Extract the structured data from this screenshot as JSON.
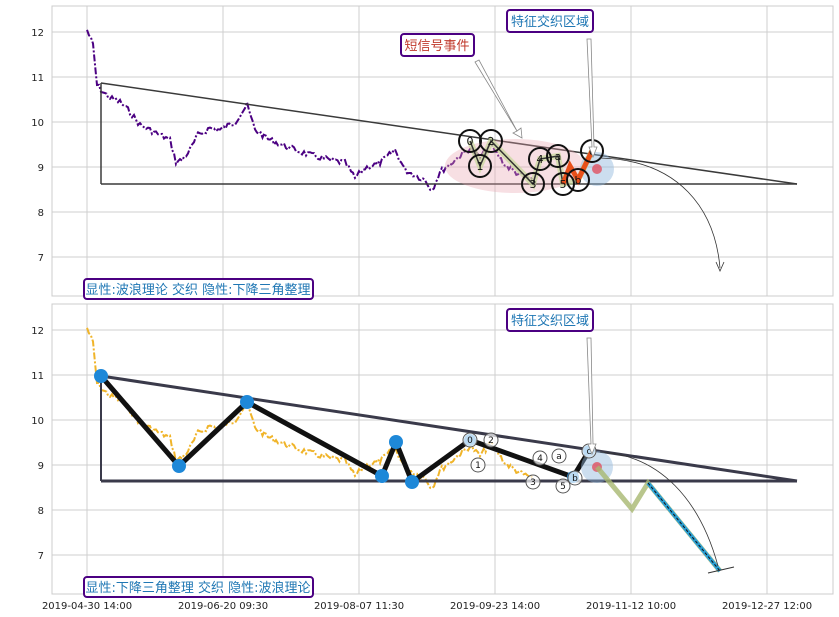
{
  "chart_data": [
    {
      "type": "line",
      "panel": "top",
      "title": "",
      "xlabel": "",
      "ylabel": "",
      "ylim": [
        6.1,
        12.6
      ],
      "yticks": [
        "7",
        "8",
        "9",
        "10",
        "11",
        "12"
      ],
      "grid": true,
      "annotations": {
        "event_label": "短信号事件",
        "zone_label": "特征交织区域",
        "footer_label": "显性:波浪理论 交织 隐性:下降三角整理"
      },
      "wave_labels": [
        "0",
        "1",
        "2",
        "3",
        "4",
        "5",
        "a",
        "b",
        "c"
      ],
      "colors": {
        "price": "#4b0082",
        "triangle": "#3a3a3a",
        "label_text_blue": "#1f77b4",
        "label_text_red": "#c0392b",
        "label_border": "#4b0082"
      }
    },
    {
      "type": "line",
      "panel": "bottom",
      "title": "",
      "xlabel": "",
      "ylabel": "",
      "ylim": [
        6.1,
        12.6
      ],
      "yticks": [
        "7",
        "8",
        "9",
        "10",
        "11",
        "12"
      ],
      "xticks": [
        "2019-04-30 14:00",
        "2019-06-20 09:30",
        "2019-08-07 11:30",
        "2019-09-23 14:00",
        "2019-11-12 10:00",
        "2019-12-27 12:00"
      ],
      "grid": true,
      "annotations": {
        "zone_label": "特征交织区域",
        "footer_label": "显性:下降三角整理 交织 隐性:波浪理论"
      },
      "wave_labels": [
        "0",
        "1",
        "2",
        "3",
        "4",
        "5",
        "a",
        "b",
        "c"
      ],
      "colors": {
        "price": "#f0b429",
        "triangle": "#3a3a4a",
        "pivot": "#1e88d8",
        "projection": "#2a9fd6"
      }
    }
  ]
}
